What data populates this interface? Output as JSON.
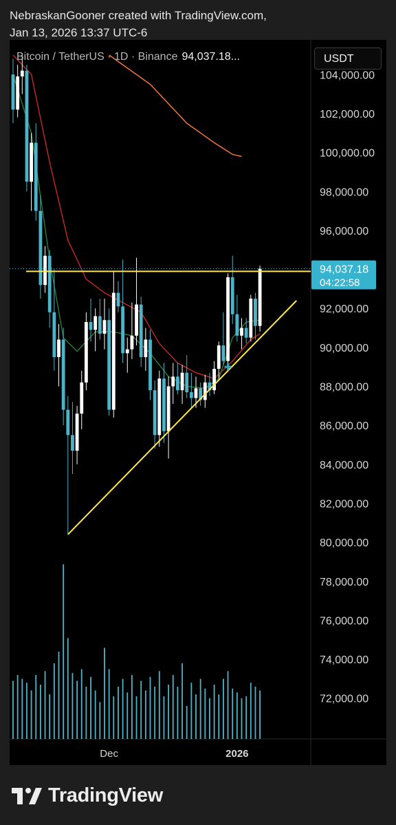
{
  "header": {
    "line1": "NebraskanGooner created with TradingView.com,",
    "line2": "Jan 13, 2026 13:37 UTC-6"
  },
  "legend": {
    "symbol": "Bitcoin / TetherUS · 1D · Binance",
    "price": "94,037.18..."
  },
  "currency_button": "USDT",
  "footer": {
    "brand": "TradingView"
  },
  "colors": {
    "up": "#ffffff",
    "down": "#4fb3c7",
    "volume": "#4fb3c7",
    "trendline": "#ffe74c",
    "ma_red": "#c62828",
    "ma_green": "#2e7d32",
    "ma_orange": "#ff7a3d",
    "price_label": "#35b3cf"
  },
  "chart_data": {
    "type": "candlestick",
    "symbol": "Bitcoin / TetherUS",
    "interval": "1D",
    "exchange": "Binance",
    "ylim": [
      69500,
      105000
    ],
    "y_ticks": [
      "104,000.00",
      "102,000.00",
      "100,000.00",
      "98,000.00",
      "96,000.00",
      "94,000.00",
      "92,000.00",
      "90,000.00",
      "88,000.00",
      "86,000.00",
      "84,000.00",
      "82,000.00",
      "80,000.00",
      "78,000.00",
      "76,000.00",
      "74,000.00",
      "72,000.00"
    ],
    "y_tick_values": [
      104000,
      102000,
      100000,
      98000,
      96000,
      94000,
      92000,
      90000,
      88000,
      86000,
      84000,
      82000,
      80000,
      78000,
      76000,
      74000,
      72000
    ],
    "x_ticks": [
      {
        "label": "Dec",
        "index": 21,
        "bold": false
      },
      {
        "label": "2026",
        "index": 49,
        "bold": true
      }
    ],
    "last_price": {
      "value": 94037.18,
      "label": "94,037.18",
      "countdown": "04:22:58"
    },
    "candles": [
      [
        104000,
        104800,
        101500,
        102200
      ],
      [
        102200,
        104500,
        101800,
        103900
      ],
      [
        103900,
        105000,
        103000,
        104200
      ],
      [
        104200,
        104500,
        98000,
        98500
      ],
      [
        98500,
        101000,
        97000,
        100500
      ],
      [
        100500,
        101500,
        96500,
        97000
      ],
      [
        97000,
        97800,
        92500,
        93200
      ],
      [
        93200,
        95200,
        92800,
        94700
      ],
      [
        94700,
        95000,
        91000,
        91800
      ],
      [
        91800,
        94000,
        88800,
        89500
      ],
      [
        89500,
        91200,
        88000,
        90400
      ],
      [
        90400,
        91000,
        86000,
        86800
      ],
      [
        86800,
        87500,
        80400,
        85500
      ],
      [
        85500,
        87200,
        83500,
        84700
      ],
      [
        84700,
        87000,
        84000,
        86600
      ],
      [
        86600,
        88800,
        85800,
        88200
      ],
      [
        88200,
        91800,
        87800,
        91300
      ],
      [
        91300,
        92500,
        90300,
        90900
      ],
      [
        90900,
        92000,
        89800,
        91600
      ],
      [
        91600,
        92500,
        90400,
        90700
      ],
      [
        90700,
        92500,
        89900,
        91400
      ],
      [
        91400,
        92000,
        86500,
        86800
      ],
      [
        86800,
        93900,
        86400,
        92800
      ],
      [
        92800,
        93400,
        91800,
        92100
      ],
      [
        92100,
        94500,
        89200,
        89700
      ],
      [
        89700,
        90500,
        88700,
        89900
      ],
      [
        89900,
        92300,
        89400,
        90600
      ],
      [
        90600,
        94600,
        90100,
        92200
      ],
      [
        92200,
        92600,
        89000,
        89500
      ],
      [
        89500,
        91000,
        88800,
        90400
      ],
      [
        90400,
        90900,
        87300,
        87800
      ],
      [
        87800,
        88300,
        84800,
        85500
      ],
      [
        85500,
        88800,
        84900,
        88400
      ],
      [
        88400,
        89200,
        85100,
        85700
      ],
      [
        85700,
        88500,
        84300,
        88000
      ],
      [
        88000,
        89200,
        87100,
        88500
      ],
      [
        88500,
        89200,
        87600,
        87800
      ],
      [
        87800,
        89100,
        87100,
        88700
      ],
      [
        88700,
        89600,
        87400,
        87700
      ],
      [
        87700,
        88700,
        86900,
        87400
      ],
      [
        87400,
        88500,
        86900,
        87900
      ],
      [
        87900,
        88200,
        87000,
        87300
      ],
      [
        87300,
        88600,
        86900,
        88200
      ],
      [
        88200,
        88700,
        87500,
        87800
      ],
      [
        87800,
        89300,
        87600,
        88900
      ],
      [
        88900,
        90300,
        88400,
        90100
      ],
      [
        90100,
        91800,
        89100,
        89300
      ],
      [
        89300,
        93800,
        89000,
        93600
      ],
      [
        93600,
        94700,
        91200,
        91700
      ],
      [
        91700,
        92700,
        90300,
        90600
      ],
      [
        90600,
        91500,
        89900,
        91000
      ],
      [
        91000,
        91500,
        90200,
        90500
      ],
      [
        90500,
        92700,
        90300,
        92500
      ],
      [
        92500,
        92800,
        90400,
        91100
      ],
      [
        91100,
        94200,
        90800,
        94037.18
      ]
    ],
    "volumes": [
      0.3,
      0.33,
      0.31,
      0.29,
      0.25,
      0.33,
      0.28,
      0.35,
      0.23,
      0.39,
      0.45,
      0.9,
      0.52,
      0.34,
      0.3,
      0.36,
      0.27,
      0.32,
      0.25,
      0.19,
      0.47,
      0.36,
      0.22,
      0.27,
      0.31,
      0.24,
      0.33,
      0.22,
      0.3,
      0.25,
      0.32,
      0.27,
      0.35,
      0.22,
      0.28,
      0.33,
      0.27,
      0.39,
      0.17,
      0.29,
      0.23,
      0.31,
      0.26,
      0.21,
      0.28,
      0.23,
      0.31,
      0.35,
      0.26,
      0.24,
      0.21,
      0.22,
      0.29,
      0.27,
      0.25
    ],
    "horizontal_line": 93900,
    "trendline": {
      "from": {
        "index": 12,
        "price": 80400
      },
      "to": {
        "index": 62,
        "price": 92400
      }
    },
    "moving_averages": [
      {
        "color": "red",
        "points": [
          [
            0,
            105000
          ],
          [
            4,
            104000
          ],
          [
            8,
            99500
          ],
          [
            12,
            95500
          ],
          [
            16,
            93500
          ],
          [
            20,
            92800
          ],
          [
            24,
            92300
          ],
          [
            28,
            91800
          ],
          [
            32,
            90200
          ],
          [
            36,
            89200
          ],
          [
            40,
            88700
          ],
          [
            44,
            88400
          ],
          [
            48,
            89300
          ],
          [
            52,
            90400
          ],
          [
            54,
            90700
          ]
        ]
      },
      {
        "color": "green",
        "points": [
          [
            0,
            104000
          ],
          [
            4,
            101000
          ],
          [
            8,
            94500
          ],
          [
            11,
            90500
          ],
          [
            14,
            89800
          ],
          [
            18,
            90800
          ],
          [
            22,
            90800
          ],
          [
            26,
            90600
          ],
          [
            30,
            89700
          ],
          [
            34,
            88500
          ],
          [
            38,
            88000
          ],
          [
            42,
            87900
          ],
          [
            45,
            88400
          ],
          [
            48,
            90500
          ],
          [
            51,
            91300
          ],
          [
            54,
            91400
          ]
        ]
      },
      {
        "color": "orange",
        "points": [
          [
            21,
            105000
          ],
          [
            30,
            103500
          ],
          [
            38,
            101500
          ],
          [
            44,
            100500
          ],
          [
            48,
            99900
          ],
          [
            50,
            99800
          ]
        ]
      }
    ]
  }
}
